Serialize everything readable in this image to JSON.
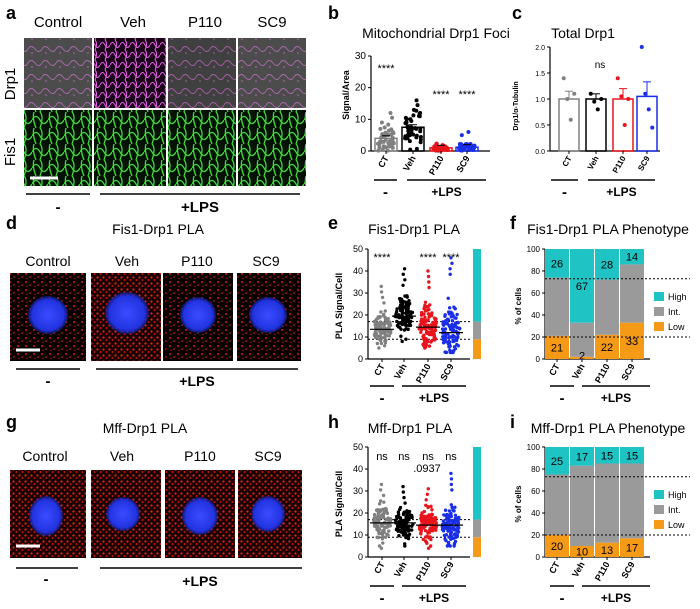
{
  "panels": {
    "a": {
      "letter": "a",
      "cols": [
        "Control",
        "Veh",
        "P110",
        "SC9"
      ],
      "rows": [
        "Drp1",
        "Fis1"
      ],
      "group_ctrl": "-",
      "group_lps": "+LPS"
    },
    "b": {
      "letter": "b",
      "title": "Mitochondrial Drp1 Foci",
      "ylabel": "Signal/Area",
      "yticks": [
        "0",
        "10",
        "20",
        "30"
      ],
      "xticks": [
        "CT",
        "Veh",
        "P110",
        "SC9"
      ],
      "sig": [
        "****",
        "",
        "****",
        "****"
      ],
      "group_ctrl": "-",
      "group_lps": "+LPS"
    },
    "c": {
      "letter": "c",
      "title": "Total Drp1",
      "ylabel": "Drp1/α-Tubulin",
      "yticks": [
        "0.0",
        "0.5",
        "1.0",
        "1.5",
        "2.0"
      ],
      "xticks": [
        "CT",
        "Veh",
        "P110",
        "SC9"
      ],
      "sig_top": "ns",
      "group_ctrl": "-",
      "group_lps": "+LPS"
    },
    "d": {
      "letter": "d",
      "title": "Fis1-Drp1 PLA",
      "cols": [
        "Control",
        "Veh",
        "P110",
        "SC9"
      ],
      "group_ctrl": "-",
      "group_lps": "+LPS"
    },
    "e": {
      "letter": "e",
      "title": "Fis1-Drp1 PLA",
      "ylabel": "PLA Signal/Cell",
      "yticks": [
        "0",
        "10",
        "20",
        "30",
        "40",
        "50"
      ],
      "xticks": [
        "CT",
        "Veh",
        "P110",
        "SC9"
      ],
      "sig": [
        "****",
        "",
        "****",
        "****"
      ],
      "group_ctrl": "-",
      "group_lps": "+LPS"
    },
    "f": {
      "letter": "f",
      "title": "Fis1-Drp1 PLA Phenotype",
      "ylabel": "% of cells",
      "yticks": [
        "0",
        "20",
        "40",
        "60",
        "80",
        "100"
      ],
      "xticks": [
        "CT",
        "Veh",
        "P110",
        "SC9"
      ],
      "high": [
        "26",
        "67",
        "28",
        "14"
      ],
      "low": [
        "21",
        "2",
        "22",
        "33"
      ],
      "legend": [
        "High",
        "Int.",
        "Low"
      ],
      "group_ctrl": "-",
      "group_lps": "+LPS"
    },
    "g": {
      "letter": "g",
      "title": "Mff-Drp1 PLA",
      "cols": [
        "Control",
        "Veh",
        "P110",
        "SC9"
      ],
      "group_ctrl": "-",
      "group_lps": "+LPS"
    },
    "h": {
      "letter": "h",
      "title": "Mff-Drp1 PLA",
      "ylabel": "PLA Signal/Cell",
      "yticks": [
        "0",
        "10",
        "20",
        "30",
        "40",
        "50"
      ],
      "xticks": [
        "CT",
        "Veh",
        "P110",
        "SC9"
      ],
      "sig": [
        "ns",
        "ns",
        "ns",
        "ns"
      ],
      "pval": ".0937",
      "group_ctrl": "-",
      "group_lps": "+LPS"
    },
    "i": {
      "letter": "i",
      "title": "Mff-Drp1 PLA Phenotype",
      "ylabel": "% of cells",
      "yticks": [
        "0",
        "20",
        "40",
        "60",
        "80",
        "100"
      ],
      "xticks": [
        "CT",
        "Veh",
        "P110",
        "SC9"
      ],
      "high": [
        "25",
        "17",
        "15",
        "15"
      ],
      "low": [
        "20",
        "10",
        "13",
        "17"
      ],
      "legend": [
        "High",
        "Int.",
        "Low"
      ],
      "group_ctrl": "-",
      "group_lps": "+LPS"
    }
  },
  "colors": {
    "ct": "#808080",
    "veh": "#000000",
    "p110": "#e8141c",
    "sc9": "#1a2ee8",
    "high": "#1fc3c4",
    "int": "#9a9a9a",
    "low": "#f59a17",
    "drp1": "#d43fd4",
    "fis1": "#36d336",
    "pla": "#d3201e",
    "dapi": "#2a3cf0"
  },
  "chart_data": [
    {
      "panel": "b",
      "type": "bar",
      "title": "Mitochondrial Drp1 Foci",
      "ylabel": "Signal/Area",
      "ylim": [
        0,
        30
      ],
      "categories": [
        "CT",
        "Veh",
        "P110",
        "SC9"
      ],
      "values": [
        4,
        7.5,
        1,
        1.2
      ]
    },
    {
      "panel": "c",
      "type": "bar",
      "title": "Total Drp1",
      "ylabel": "Drp1/α-Tubulin",
      "ylim": [
        0,
        2
      ],
      "categories": [
        "CT",
        "Veh",
        "P110",
        "SC9"
      ],
      "values": [
        1.0,
        1.0,
        1.0,
        1.05
      ],
      "errors": [
        0.15,
        0.1,
        0.2,
        0.28
      ],
      "points": [
        [
          1.4,
          1.0,
          0.6,
          1.1
        ],
        [
          1.1,
          0.95,
          0.8,
          1.0
        ],
        [
          1.4,
          1.05,
          0.5,
          1.0
        ],
        [
          2.0,
          1.1,
          0.8,
          0.45
        ]
      ]
    },
    {
      "panel": "e",
      "type": "scatter",
      "title": "Fis1-Drp1 PLA",
      "ylabel": "PLA Signal/Cell",
      "ylim": [
        0,
        50
      ],
      "categories": [
        "CT",
        "Veh",
        "P110",
        "SC9"
      ],
      "medians": [
        13.5,
        19.5,
        14.5,
        12
      ],
      "ranges": [
        [
          5,
          33
        ],
        [
          8,
          41
        ],
        [
          5,
          40
        ],
        [
          3,
          46
        ]
      ],
      "thresholds": [
        9,
        17
      ]
    },
    {
      "panel": "f",
      "type": "bar",
      "title": "Fis1-Drp1 PLA Phenotype",
      "ylabel": "% of cells",
      "ylim": [
        0,
        100
      ],
      "categories": [
        "CT",
        "Veh",
        "P110",
        "SC9"
      ],
      "series": [
        {
          "name": "Low",
          "values": [
            21,
            2,
            22,
            33
          ]
        },
        {
          "name": "Int.",
          "values": [
            53,
            31,
            50,
            53
          ]
        },
        {
          "name": "High",
          "values": [
            26,
            67,
            28,
            14
          ]
        }
      ]
    },
    {
      "panel": "h",
      "type": "scatter",
      "title": "Mff-Drp1 PLA",
      "ylabel": "PLA Signal/Cell",
      "ylim": [
        0,
        50
      ],
      "categories": [
        "CT",
        "Veh",
        "P110",
        "SC9"
      ],
      "medians": [
        15.5,
        15.5,
        14.5,
        14.5
      ],
      "ranges": [
        [
          4,
          33
        ],
        [
          5,
          32
        ],
        [
          4,
          31
        ],
        [
          5,
          38
        ]
      ],
      "thresholds": [
        9,
        17
      ]
    },
    {
      "panel": "i",
      "type": "bar",
      "title": "Mff-Drp1 PLA Phenotype",
      "ylabel": "% of cells",
      "ylim": [
        0,
        100
      ],
      "categories": [
        "CT",
        "Veh",
        "P110",
        "SC9"
      ],
      "series": [
        {
          "name": "Low",
          "values": [
            20,
            10,
            13,
            17
          ]
        },
        {
          "name": "Int.",
          "values": [
            55,
            73,
            72,
            68
          ]
        },
        {
          "name": "High",
          "values": [
            25,
            17,
            15,
            15
          ]
        }
      ]
    }
  ]
}
